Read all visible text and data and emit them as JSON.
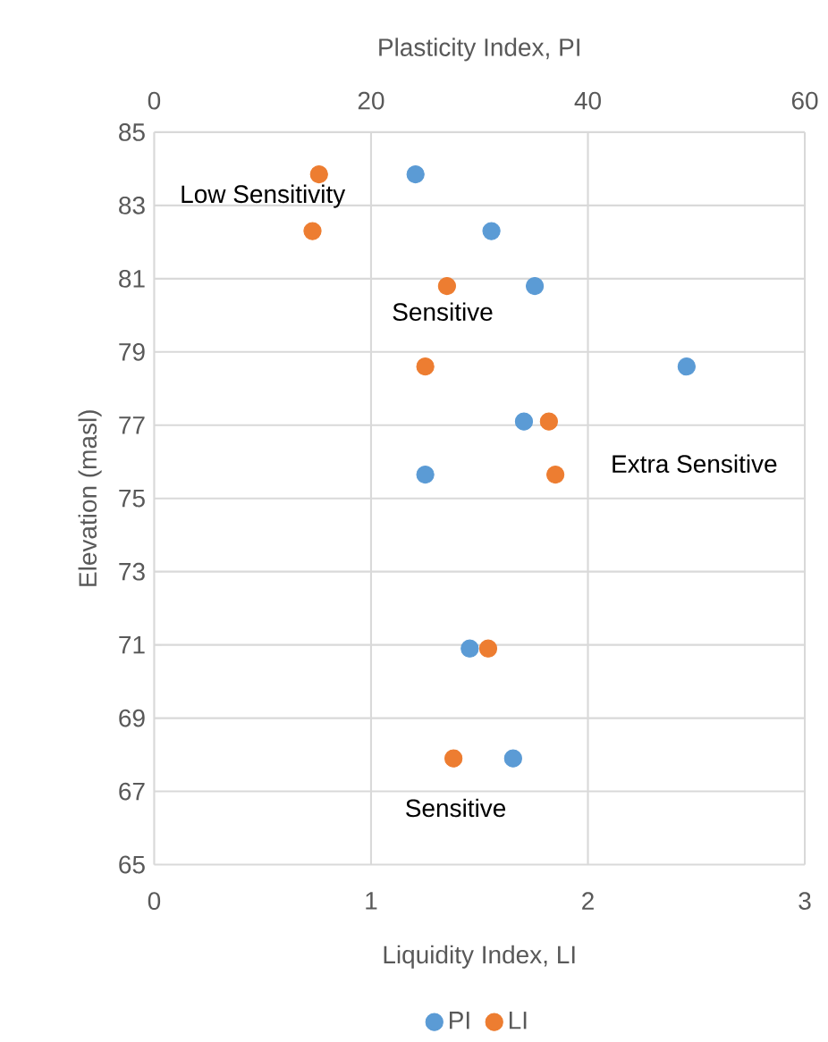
{
  "chart_data": {
    "type": "scatter",
    "xlabel": "Liquidity Index, LI",
    "x2label": "Plasticity Index, PI",
    "ylabel": "Elevation (masl)",
    "xlim": [
      0,
      3
    ],
    "xticks": [
      0,
      1,
      2,
      3
    ],
    "x2lim": [
      0,
      60
    ],
    "x2ticks": [
      0,
      20,
      40,
      60
    ],
    "ylim": [
      65,
      85
    ],
    "yticks": [
      65,
      67,
      69,
      71,
      73,
      75,
      77,
      79,
      81,
      83,
      85
    ],
    "grid": true,
    "legend": "bottom",
    "marker": "circle",
    "annotations": [
      "Low Sensitivity",
      "Sensitive",
      "Extra Sensitive",
      "Sensitive"
    ],
    "series": [
      {
        "name": "PI",
        "color": "#5b9bd5",
        "axis": "x2",
        "x": [
          24.1,
          31.1,
          35.1,
          49.1,
          34.1,
          25.0,
          29.1,
          33.1
        ],
        "values": [
          83.85,
          82.3,
          80.8,
          78.6,
          77.1,
          75.65,
          70.9,
          67.9
        ]
      },
      {
        "name": "LI",
        "color": "#ed7d31",
        "x": [
          0.76,
          0.73,
          1.35,
          1.25,
          1.82,
          1.85,
          1.54,
          1.38
        ],
        "values": [
          83.85,
          82.3,
          80.8,
          78.6,
          77.1,
          75.65,
          70.9,
          67.9
        ]
      }
    ]
  }
}
